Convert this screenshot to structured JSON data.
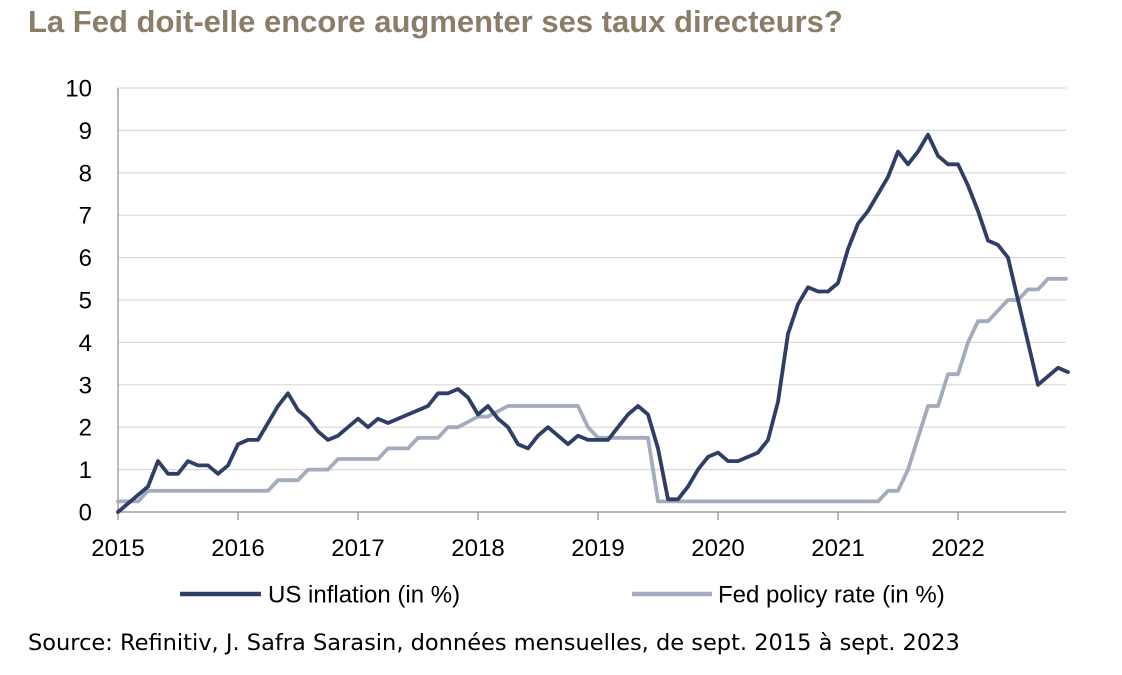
{
  "title": "La Fed doit-elle encore augmenter ses taux directeurs?",
  "source": "Source: Refinitiv, J. Safra Sarasin, données mensuelles, de sept. 2015 à sept. 2023",
  "colors": {
    "title": "#8B7D6A",
    "inflation": "#2F3E66",
    "policy": "#A3ABBF",
    "grid": "#D9D9D9",
    "axis": "#8C8C8C"
  },
  "chart_data": {
    "type": "line",
    "xlabel": "",
    "ylabel": "",
    "ylim": [
      0,
      10
    ],
    "xlim": [
      2015,
      2022.9
    ],
    "y_ticks": [
      "0",
      "1",
      "2",
      "3",
      "4",
      "5",
      "6",
      "7",
      "8",
      "9",
      "10"
    ],
    "x_ticks": [
      "2015",
      "2016",
      "2017",
      "2018",
      "2019",
      "2020",
      "2021",
      "2022"
    ],
    "grid": "horizontal",
    "legend": "bottom",
    "series": [
      {
        "name": "US inflation (in %)",
        "x": [
          2015.0,
          2015.083,
          2015.167,
          2015.25,
          2015.333,
          2015.417,
          2015.5,
          2015.583,
          2015.667,
          2015.75,
          2015.833,
          2015.917,
          2016.0,
          2016.083,
          2016.167,
          2016.25,
          2016.333,
          2016.417,
          2016.5,
          2016.583,
          2016.667,
          2016.75,
          2016.833,
          2016.917,
          2017.0,
          2017.083,
          2017.167,
          2017.25,
          2017.333,
          2017.417,
          2017.5,
          2017.583,
          2017.667,
          2017.75,
          2017.833,
          2017.917,
          2018.0,
          2018.083,
          2018.167,
          2018.25,
          2018.333,
          2018.417,
          2018.5,
          2018.583,
          2018.667,
          2018.75,
          2018.833,
          2018.917,
          2019.0,
          2019.083,
          2019.167,
          2019.25,
          2019.333,
          2019.417,
          2019.5,
          2019.583,
          2019.667,
          2019.75,
          2019.833,
          2019.917,
          2020.0,
          2020.083,
          2020.167,
          2020.25,
          2020.333,
          2020.417,
          2020.5,
          2020.583,
          2020.667,
          2020.75,
          2020.833,
          2020.917,
          2021.0,
          2021.083,
          2021.167,
          2021.25,
          2021.333,
          2021.417,
          2021.5,
          2021.583,
          2021.667,
          2021.75,
          2021.833,
          2021.917,
          2022.0,
          2022.083,
          2022.167,
          2022.25,
          2022.333,
          2022.417,
          2022.5,
          2022.583,
          2022.667,
          2022.75,
          2022.833,
          2022.917
        ],
        "values": [
          0.0,
          0.2,
          0.4,
          0.6,
          1.2,
          0.9,
          0.9,
          1.2,
          1.1,
          1.1,
          0.9,
          1.1,
          1.6,
          1.7,
          1.7,
          2.1,
          2.5,
          2.8,
          2.4,
          2.2,
          1.9,
          1.7,
          1.8,
          2.0,
          2.2,
          2.0,
          2.2,
          2.1,
          2.2,
          2.3,
          2.4,
          2.5,
          2.8,
          2.8,
          2.9,
          2.7,
          2.3,
          2.5,
          2.2,
          2.0,
          1.6,
          1.5,
          1.8,
          2.0,
          1.8,
          1.6,
          1.8,
          1.7,
          1.7,
          1.7,
          2.0,
          2.3,
          2.5,
          2.3,
          1.5,
          0.3,
          0.3,
          0.6,
          1.0,
          1.3,
          1.4,
          1.2,
          1.2,
          1.3,
          1.4,
          1.7,
          2.6,
          4.2,
          4.9,
          5.3,
          5.2,
          5.2,
          5.4,
          6.2,
          6.8,
          7.1,
          7.5,
          7.9,
          8.5,
          8.2,
          8.5,
          8.9,
          8.4,
          8.2,
          8.2,
          7.7,
          7.1,
          6.4,
          6.3,
          6.0,
          5.0,
          4.0,
          3.0,
          3.2,
          3.4,
          3.3
        ]
      },
      {
        "name": "Fed policy rate (in %)",
        "x": [
          2015.0,
          2015.083,
          2015.167,
          2015.25,
          2015.5,
          2015.75,
          2016.0,
          2016.25,
          2016.333,
          2016.5,
          2016.583,
          2016.75,
          2016.833,
          2017.0,
          2017.167,
          2017.25,
          2017.417,
          2017.5,
          2017.667,
          2017.75,
          2017.833,
          2018.0,
          2018.083,
          2018.25,
          2018.333,
          2018.5,
          2018.667,
          2018.833,
          2018.917,
          2019.0,
          2019.083,
          2019.25,
          2019.417,
          2019.5,
          2019.583,
          2019.75,
          2020.0,
          2020.5,
          2021.0,
          2021.25,
          2021.333,
          2021.417,
          2021.5,
          2021.583,
          2021.667,
          2021.75,
          2021.833,
          2021.917,
          2022.0,
          2022.083,
          2022.167,
          2022.25,
          2022.333,
          2022.417,
          2022.5,
          2022.583,
          2022.667,
          2022.75,
          2022.833,
          2022.9
        ],
        "values": [
          0.25,
          0.25,
          0.25,
          0.5,
          0.5,
          0.5,
          0.5,
          0.5,
          0.75,
          0.75,
          1.0,
          1.0,
          1.25,
          1.25,
          1.25,
          1.5,
          1.5,
          1.75,
          1.75,
          2.0,
          2.0,
          2.25,
          2.25,
          2.5,
          2.5,
          2.5,
          2.5,
          2.5,
          2.0,
          1.75,
          1.75,
          1.75,
          1.75,
          0.25,
          0.25,
          0.25,
          0.25,
          0.25,
          0.25,
          0.25,
          0.25,
          0.5,
          0.5,
          1.0,
          1.75,
          2.5,
          2.5,
          3.25,
          3.25,
          4.0,
          4.5,
          4.5,
          4.75,
          5.0,
          5.0,
          5.25,
          5.25,
          5.5,
          5.5,
          5.5
        ]
      }
    ]
  }
}
